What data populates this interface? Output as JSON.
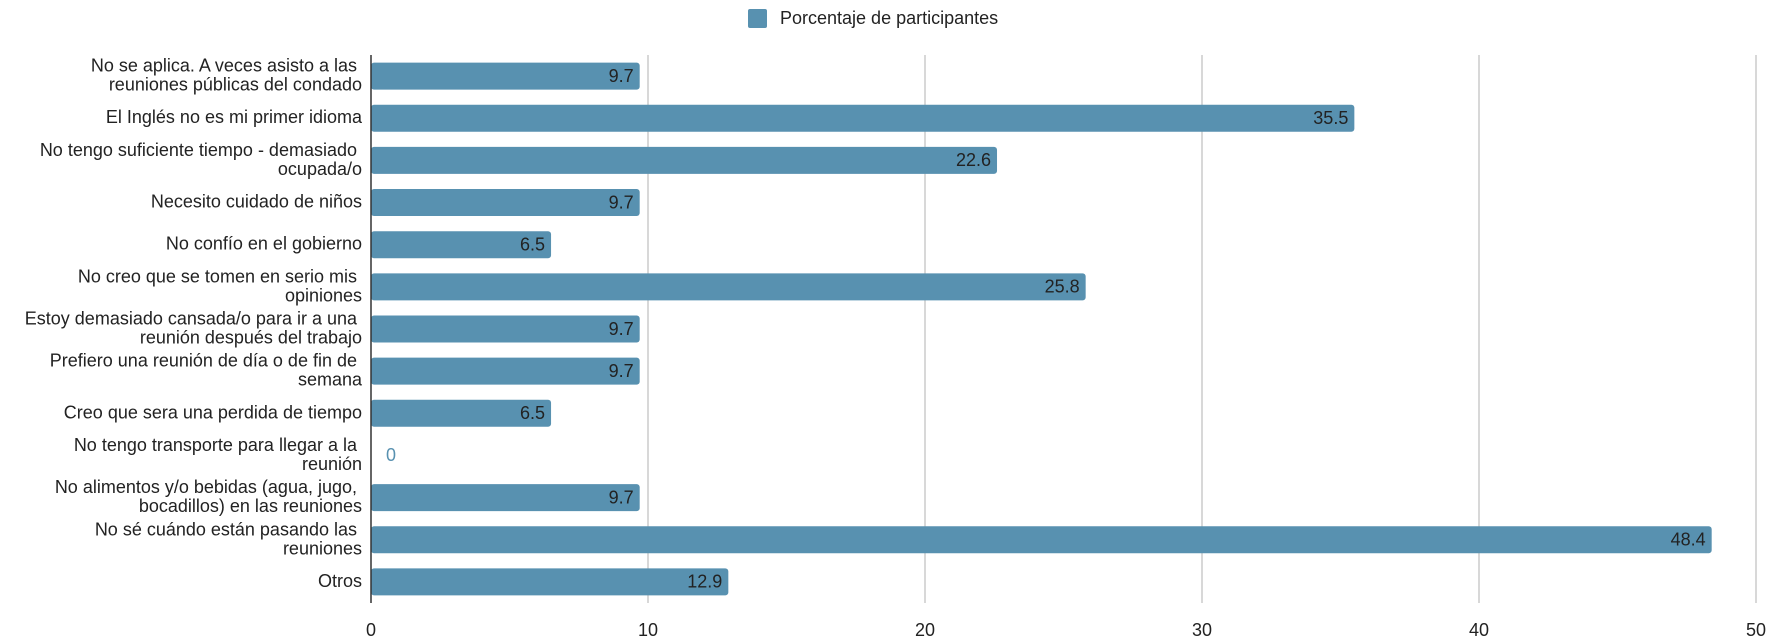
{
  "chart_data": {
    "type": "bar",
    "orientation": "horizontal",
    "categories": [
      "No se aplica. A veces asisto a las reuniones públicas del condado",
      "El Inglés no es mi primer idioma",
      "No tengo suficiente tiempo - demasiado ocupada/o",
      "Necesito cuidado de niños",
      "No confío en el gobierno",
      "No creo que se tomen en serio mis opiniones",
      "Estoy demasiado cansada/o para ir a una reunión después del trabajo",
      "Prefiero una reunión de día o de fin de semana",
      "Creo que sera una perdida de tiempo",
      "No tengo transporte para llegar a la reunión",
      "No alimentos y/o bebidas (agua, jugo, bocadillos) en las reuniones",
      "No sé cuándo están pasando las reuniones",
      "Otros"
    ],
    "series": [
      {
        "name": "Porcentaje de participantes",
        "color": "#5891b0",
        "values": [
          9.7,
          35.5,
          22.6,
          9.7,
          6.5,
          25.8,
          9.7,
          9.7,
          6.5,
          0,
          9.7,
          48.4,
          12.9
        ]
      }
    ],
    "xlim": [
      0,
      50
    ],
    "xticks": [
      0,
      10,
      20,
      30,
      40,
      50
    ],
    "grid": true,
    "legend": "top"
  }
}
